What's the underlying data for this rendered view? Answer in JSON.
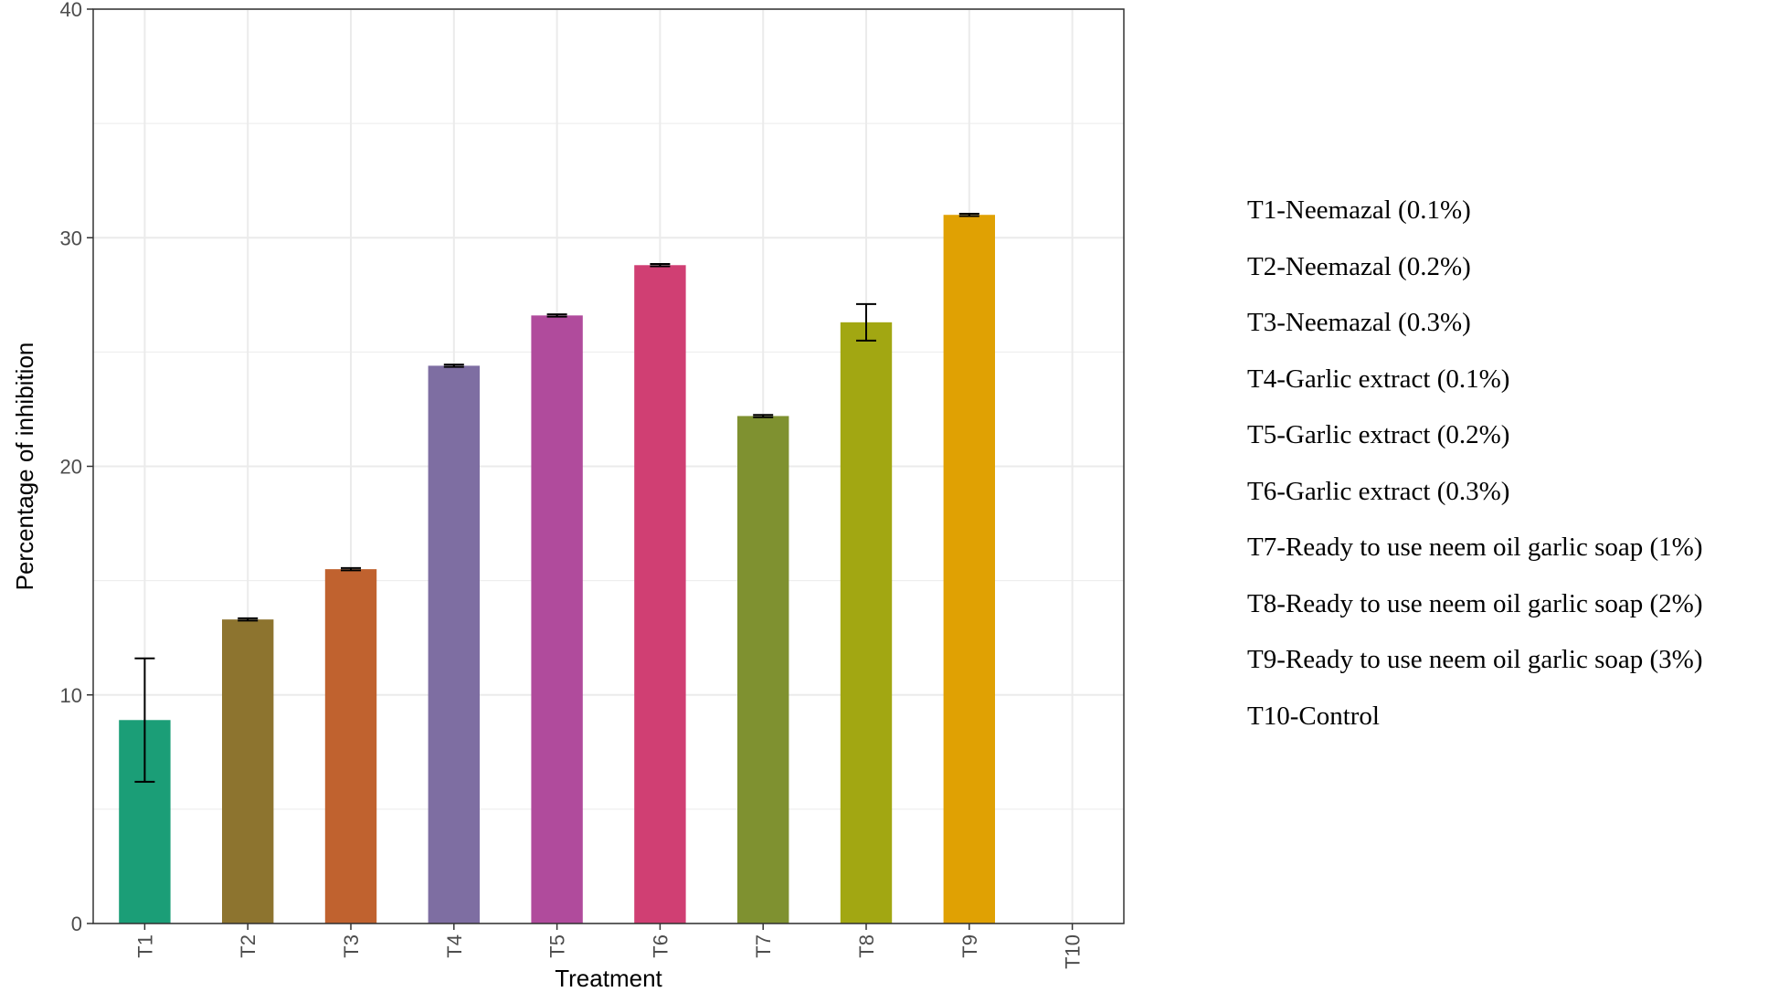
{
  "chart_data": {
    "type": "bar",
    "categories": [
      "T1",
      "T2",
      "T3",
      "T4",
      "T5",
      "T6",
      "T7",
      "T8",
      "T9",
      "T10"
    ],
    "values": [
      8.9,
      13.3,
      15.5,
      24.4,
      26.6,
      28.8,
      22.2,
      26.3,
      31.0,
      0
    ],
    "error": [
      2.7,
      0.05,
      0.05,
      0.05,
      0.05,
      0.05,
      0.05,
      0.8,
      0.05,
      0
    ],
    "colors": [
      "#1b9e77",
      "#8d742f",
      "#c0622f",
      "#7e6ea2",
      "#b04b9c",
      "#d03f73",
      "#7f9130",
      "#a2a712",
      "#e0a103",
      "#cccccc"
    ],
    "xlabel": "Treatment",
    "ylabel": "Percentage of inhibition",
    "ylim": [
      0,
      40
    ],
    "yticks": [
      "0",
      "10",
      "20",
      "30",
      "40"
    ],
    "grid": true,
    "legend_position": "right"
  },
  "legend": {
    "items": [
      "T1-Neemazal (0.1%)",
      "T2-Neemazal (0.2%)",
      "T3-Neemazal (0.3%)",
      "T4-Garlic extract (0.1%)",
      "T5-Garlic extract (0.2%)",
      "T6-Garlic extract (0.3%)",
      "T7-Ready to use neem oil garlic soap (1%)",
      "T8-Ready to use neem oil garlic soap (2%)",
      "T9-Ready to use neem oil garlic soap (3%)",
      "T10-Control"
    ]
  }
}
